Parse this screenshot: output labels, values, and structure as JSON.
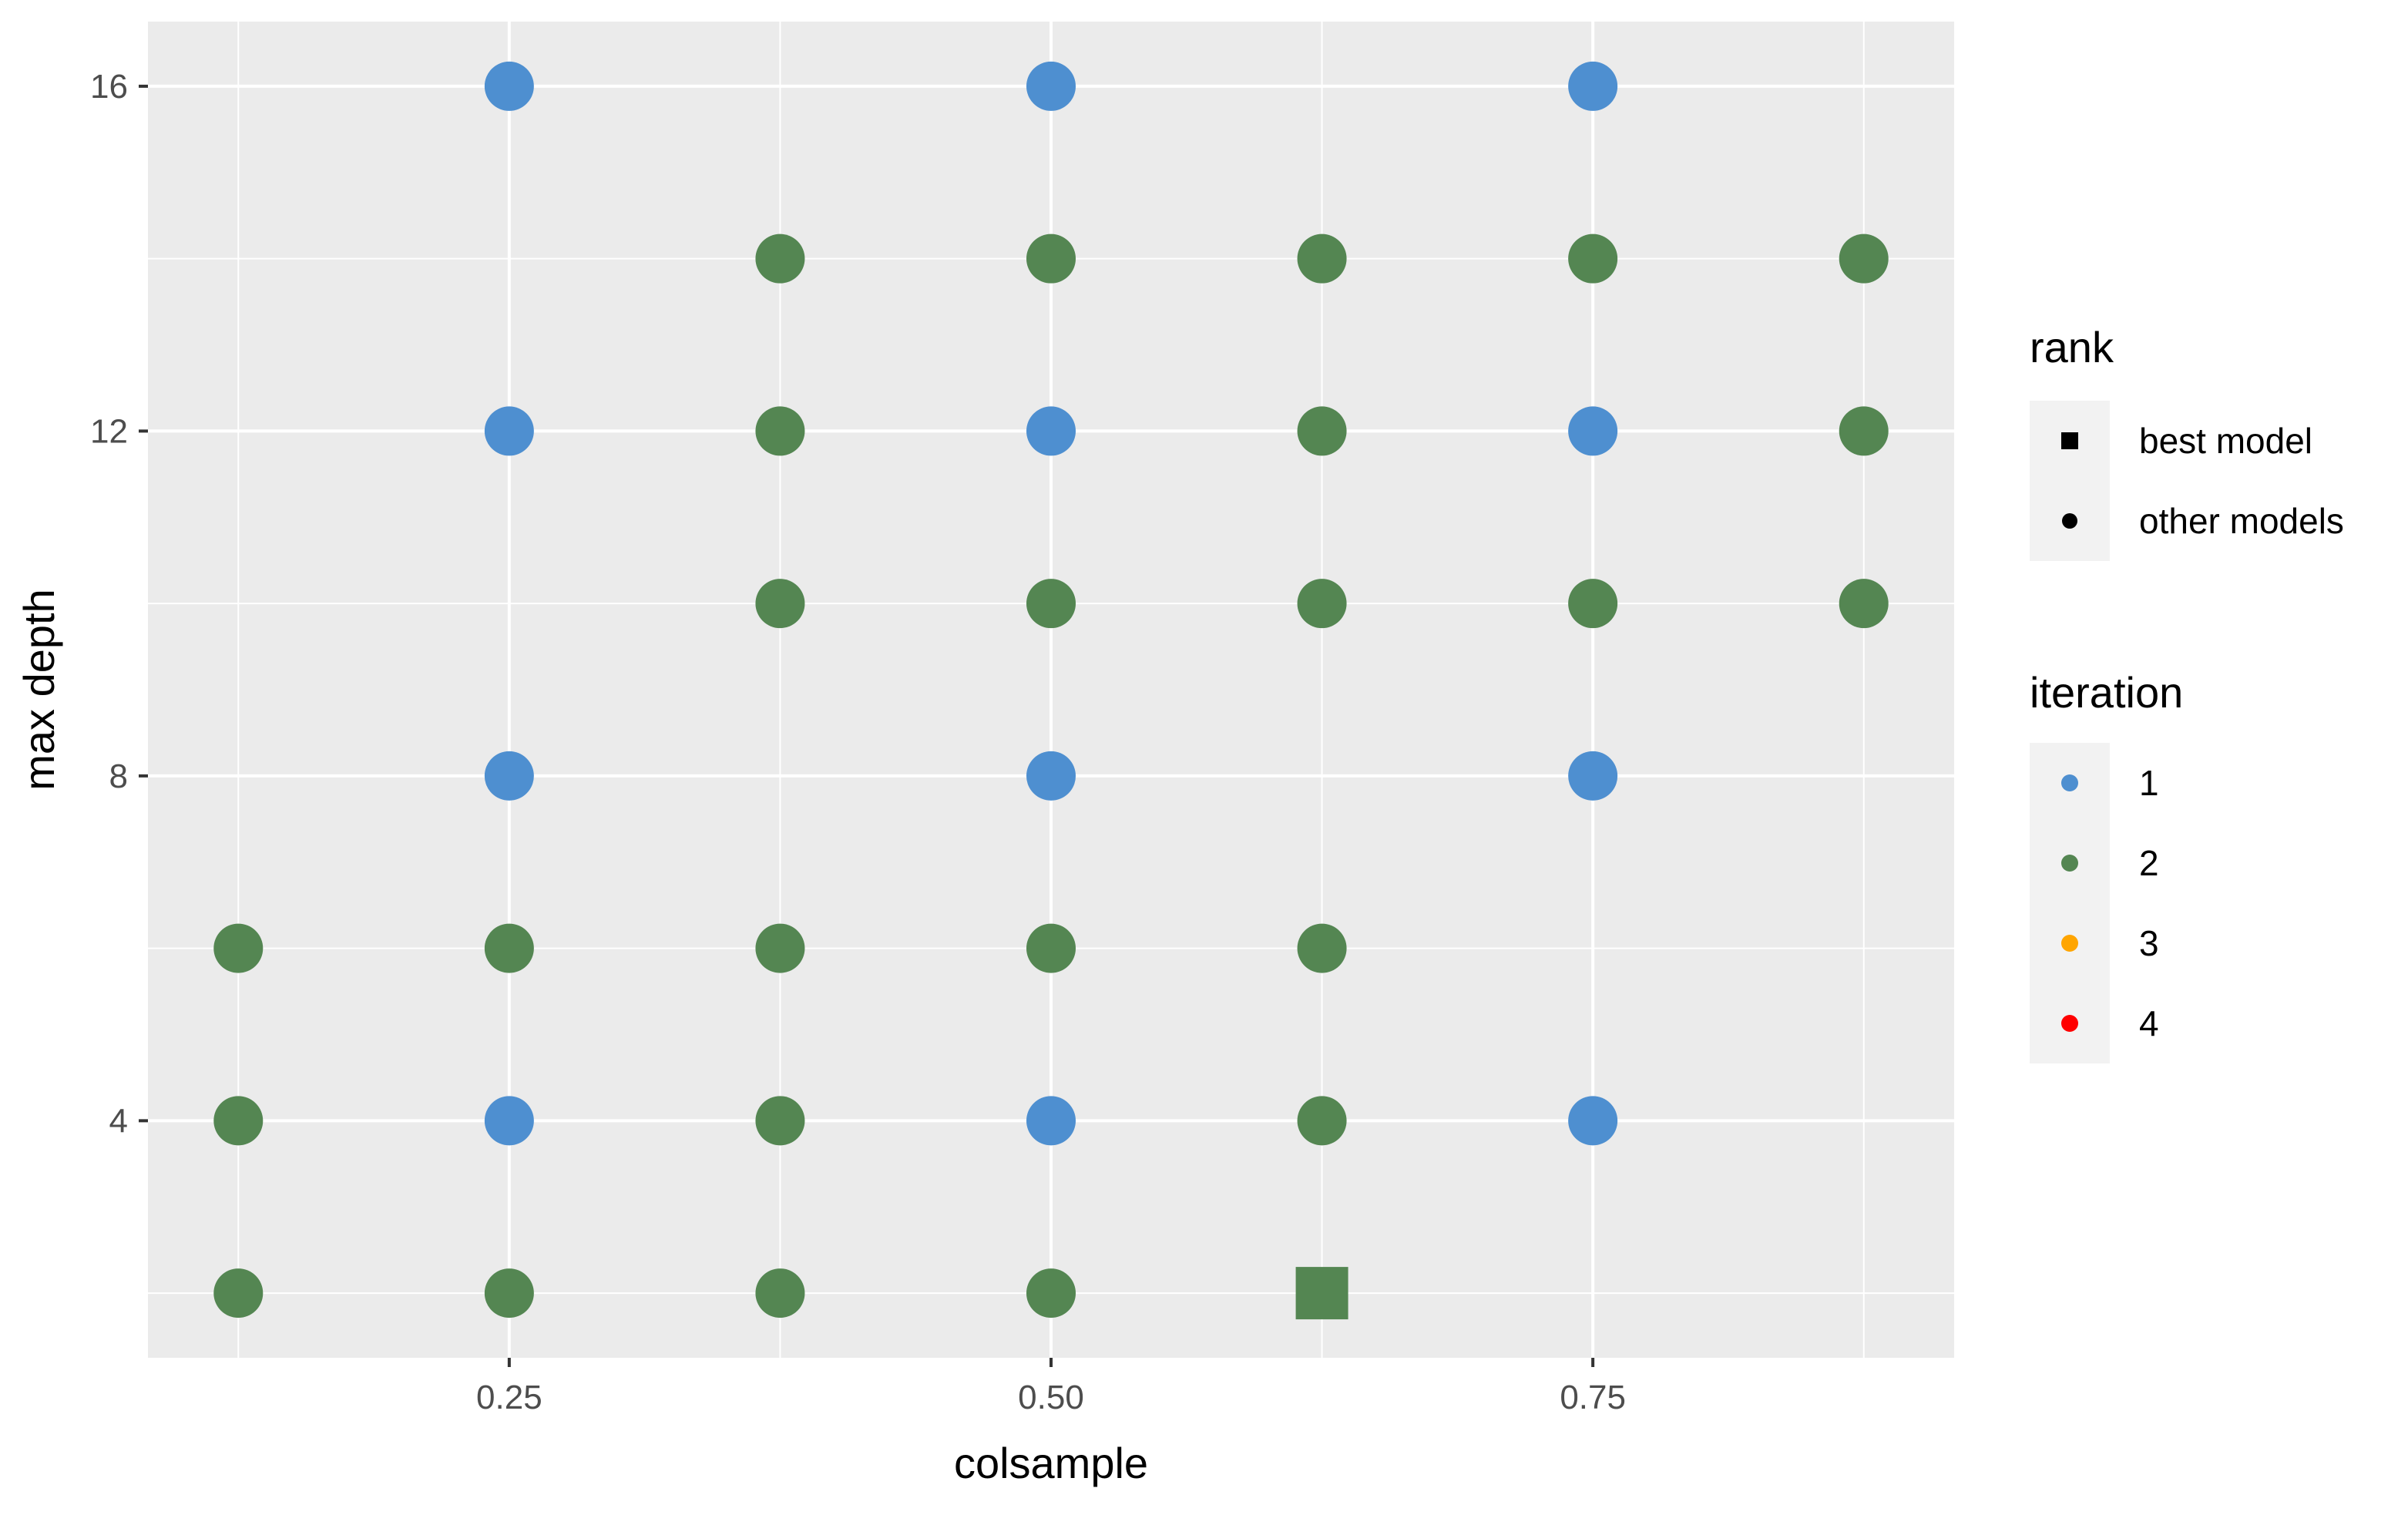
{
  "chart_data": {
    "type": "scatter",
    "xlabel": "colsample",
    "ylabel": "max depth",
    "xlim": [
      0.0833,
      0.9167
    ],
    "ylim": [
      1.25,
      16.75
    ],
    "x_ticks": [
      0.25,
      0.5,
      0.75
    ],
    "x_tick_labels": [
      "0.25",
      "0.50",
      "0.75"
    ],
    "x_minor_ticks": [
      0.125,
      0.375,
      0.625,
      0.875
    ],
    "y_ticks": [
      4,
      8,
      12,
      16
    ],
    "y_tick_labels": [
      "4",
      "8",
      "12",
      "16"
    ],
    "y_minor_ticks": [
      2,
      6,
      10,
      14
    ],
    "grid": true,
    "background": "#EBEBEB",
    "legend_position": "right",
    "legends": [
      {
        "title": "rank",
        "items": [
          {
            "label": "best model",
            "shape": "square"
          },
          {
            "label": "other models",
            "shape": "circle"
          }
        ]
      },
      {
        "title": "iteration",
        "items": [
          {
            "label": "1",
            "color": "#4E8FD0"
          },
          {
            "label": "2",
            "color": "#548652"
          },
          {
            "label": "3",
            "color": "#FFA500"
          },
          {
            "label": "4",
            "color": "#FF0000"
          }
        ]
      }
    ],
    "series": [
      {
        "name": "1",
        "color": "#4E8FD0",
        "points": [
          {
            "x": 0.25,
            "y": 16,
            "rank": "other models"
          },
          {
            "x": 0.5,
            "y": 16,
            "rank": "other models"
          },
          {
            "x": 0.75,
            "y": 16,
            "rank": "other models"
          },
          {
            "x": 0.25,
            "y": 12,
            "rank": "other models"
          },
          {
            "x": 0.5,
            "y": 12,
            "rank": "other models"
          },
          {
            "x": 0.75,
            "y": 12,
            "rank": "other models"
          },
          {
            "x": 0.25,
            "y": 8,
            "rank": "other models"
          },
          {
            "x": 0.5,
            "y": 8,
            "rank": "other models"
          },
          {
            "x": 0.75,
            "y": 8,
            "rank": "other models"
          },
          {
            "x": 0.25,
            "y": 4,
            "rank": "other models"
          },
          {
            "x": 0.5,
            "y": 4,
            "rank": "other models"
          },
          {
            "x": 0.75,
            "y": 4,
            "rank": "other models"
          }
        ]
      },
      {
        "name": "2",
        "color": "#548652",
        "points": [
          {
            "x": 0.375,
            "y": 14,
            "rank": "other models"
          },
          {
            "x": 0.5,
            "y": 14,
            "rank": "other models"
          },
          {
            "x": 0.625,
            "y": 14,
            "rank": "other models"
          },
          {
            "x": 0.75,
            "y": 14,
            "rank": "other models"
          },
          {
            "x": 0.875,
            "y": 14,
            "rank": "other models"
          },
          {
            "x": 0.375,
            "y": 12,
            "rank": "other models"
          },
          {
            "x": 0.625,
            "y": 12,
            "rank": "other models"
          },
          {
            "x": 0.875,
            "y": 12,
            "rank": "other models"
          },
          {
            "x": 0.375,
            "y": 10,
            "rank": "other models"
          },
          {
            "x": 0.5,
            "y": 10,
            "rank": "other models"
          },
          {
            "x": 0.625,
            "y": 10,
            "rank": "other models"
          },
          {
            "x": 0.75,
            "y": 10,
            "rank": "other models"
          },
          {
            "x": 0.875,
            "y": 10,
            "rank": "other models"
          },
          {
            "x": 0.125,
            "y": 6,
            "rank": "other models"
          },
          {
            "x": 0.25,
            "y": 6,
            "rank": "other models"
          },
          {
            "x": 0.375,
            "y": 6,
            "rank": "other models"
          },
          {
            "x": 0.5,
            "y": 6,
            "rank": "other models"
          },
          {
            "x": 0.625,
            "y": 6,
            "rank": "other models"
          },
          {
            "x": 0.125,
            "y": 4,
            "rank": "other models"
          },
          {
            "x": 0.375,
            "y": 4,
            "rank": "other models"
          },
          {
            "x": 0.625,
            "y": 4,
            "rank": "other models"
          },
          {
            "x": 0.125,
            "y": 2,
            "rank": "other models"
          },
          {
            "x": 0.25,
            "y": 2,
            "rank": "other models"
          },
          {
            "x": 0.375,
            "y": 2,
            "rank": "other models"
          },
          {
            "x": 0.5,
            "y": 2,
            "rank": "other models"
          },
          {
            "x": 0.625,
            "y": 2,
            "rank": "best model"
          }
        ]
      }
    ]
  }
}
